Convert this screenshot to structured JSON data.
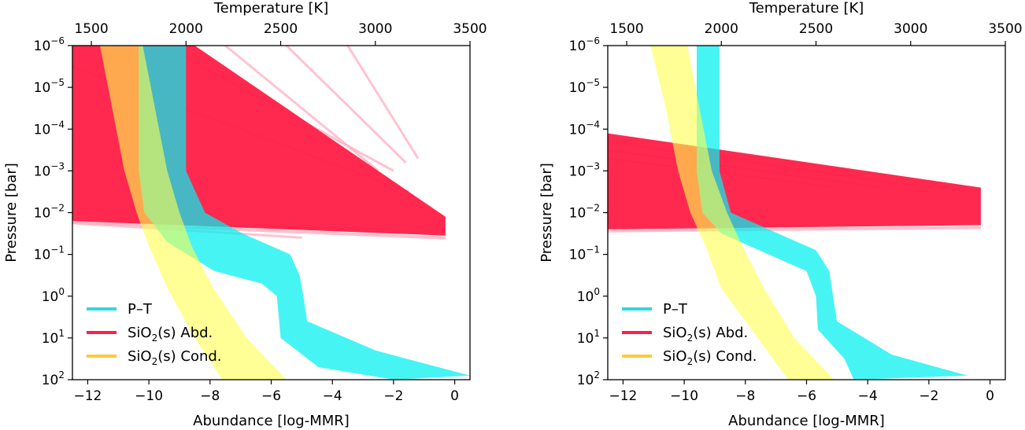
{
  "colors": {
    "pt": "#00f0f0",
    "abd": "#ff1e46",
    "abd_light": "#ffb0c0",
    "cond": "#ffff50",
    "legend_cond": "#ffc840",
    "legend_pt": "#30d8e0"
  },
  "chart_data": [
    {
      "type": "line",
      "panel": "left",
      "title": "",
      "xlabel": "Abundance [log-MMR]",
      "ylabel": "Pressure [bar]",
      "top_xlabel": "Temperature [K]",
      "xlim": [
        -12.5,
        0.5
      ],
      "ylim_log10": [
        2,
        -6
      ],
      "x_ticks": [
        -12,
        -10,
        -8,
        -6,
        -4,
        -2,
        0
      ],
      "x_tick_labels": [
        "−12",
        "−10",
        "−8",
        "−6",
        "−4",
        "−2",
        "0"
      ],
      "top_xlim": [
        1400,
        3500
      ],
      "top_ticks": [
        1500,
        2000,
        2500,
        3000,
        3500
      ],
      "top_tick_labels": [
        "1500",
        "2000",
        "2500",
        "3000",
        "3500"
      ],
      "y_ticks_log10": [
        -6,
        -5,
        -4,
        -3,
        -2,
        -1,
        0,
        1,
        2
      ],
      "y_tick_labels": [
        "−6",
        "−5",
        "−4",
        "−3",
        "−2",
        "−1",
        "0",
        "1",
        "2"
      ],
      "series": [
        {
          "name": "P–T",
          "axis": "temperature",
          "left": [
            [
              1750,
              -6
            ],
            [
              1750,
              -3
            ],
            [
              1780,
              -2
            ],
            [
              1900,
              -1.3
            ],
            [
              2150,
              -0.6
            ],
            [
              2400,
              -0.3
            ],
            [
              2480,
              0
            ],
            [
              2500,
              1
            ],
            [
              2700,
              1.7
            ],
            [
              3100,
              2
            ]
          ],
          "right": [
            [
              2000,
              -6
            ],
            [
              2000,
              -3
            ],
            [
              2100,
              -2
            ],
            [
              2300,
              -1.5
            ],
            [
              2550,
              -1
            ],
            [
              2600,
              -0.5
            ],
            [
              2620,
              0
            ],
            [
              2640,
              0.6
            ],
            [
              3000,
              1.3
            ],
            [
              3500,
              1.9
            ]
          ]
        },
        {
          "name": "SiO₂(s) Abd.",
          "axis": "abundance",
          "band": [
            [
              -12.5,
              -6
            ],
            [
              -8.5,
              -6
            ],
            [
              -0.3,
              -1.9
            ],
            [
              -0.3,
              -1.45
            ],
            [
              -12.5,
              -1.8
            ]
          ],
          "outliers": [
            [
              [
                -9.5,
                -6
              ],
              [
                -2.0,
                -3.0
              ]
            ],
            [
              [
                -7.5,
                -6
              ],
              [
                -2.5,
                -3.0
              ]
            ],
            [
              [
                -5.5,
                -6
              ],
              [
                -1.6,
                -3.2
              ]
            ],
            [
              [
                -3.5,
                -6
              ],
              [
                -1.2,
                -3.3
              ]
            ],
            [
              [
                -12.5,
                -5.5
              ],
              [
                -1.5,
                -2.5
              ]
            ],
            [
              [
                -12.5,
                -1.8
              ],
              [
                -2.0,
                -1.6
              ]
            ],
            [
              [
                -12.5,
                -1.75
              ],
              [
                -5.0,
                -1.4
              ]
            ]
          ]
        },
        {
          "name": "SiO₂(s) Cond.",
          "axis": "abundance",
          "left": [
            [
              -11.6,
              -6
            ],
            [
              -11.2,
              -4.5
            ],
            [
              -10.8,
              -3
            ],
            [
              -10.4,
              -2
            ],
            [
              -10.0,
              -1.2
            ],
            [
              -9.4,
              -0.2
            ],
            [
              -8.5,
              1
            ],
            [
              -7.6,
              2
            ]
          ],
          "right": [
            [
              -10.2,
              -6
            ],
            [
              -9.8,
              -4.5
            ],
            [
              -9.4,
              -3
            ],
            [
              -9.0,
              -2
            ],
            [
              -8.6,
              -1.2
            ],
            [
              -7.9,
              -0.2
            ],
            [
              -6.8,
              1
            ],
            [
              -5.5,
              2
            ]
          ]
        }
      ],
      "legend": [
        "P–T",
        "SiO₂(s) Abd.",
        "SiO₂(s) Cond."
      ],
      "legend_location": "lower-left"
    },
    {
      "type": "line",
      "panel": "right",
      "title": "",
      "xlabel": "Abundance [log-MMR]",
      "ylabel": "Pressure [bar]",
      "top_xlabel": "Temperature [K]",
      "xlim": [
        -12.5,
        0.5
      ],
      "ylim_log10": [
        2,
        -6
      ],
      "x_ticks": [
        -12,
        -10,
        -8,
        -6,
        -4,
        -2,
        0
      ],
      "x_tick_labels": [
        "−12",
        "−10",
        "−8",
        "−6",
        "−4",
        "−2",
        "0"
      ],
      "top_xlim": [
        1400,
        3500
      ],
      "top_ticks": [
        1500,
        2000,
        2500,
        3000,
        3500
      ],
      "top_tick_labels": [
        "1500",
        "2000",
        "2500",
        "3000",
        "3500"
      ],
      "y_ticks_log10": [
        -6,
        -5,
        -4,
        -3,
        -2,
        -1,
        0,
        1,
        2
      ],
      "y_tick_labels": [
        "−6",
        "−5",
        "−4",
        "−3",
        "−2",
        "−1",
        "0",
        "1",
        "2"
      ],
      "series": [
        {
          "name": "P–T",
          "axis": "temperature",
          "left": [
            [
              1870,
              -6
            ],
            [
              1870,
              -3
            ],
            [
              1900,
              -2
            ],
            [
              2000,
              -1.5
            ],
            [
              2250,
              -1.0
            ],
            [
              2450,
              -0.6
            ],
            [
              2500,
              0
            ],
            [
              2510,
              0.8
            ],
            [
              2650,
              1.5
            ],
            [
              2700,
              2
            ]
          ],
          "right": [
            [
              1990,
              -6
            ],
            [
              1990,
              -3
            ],
            [
              2050,
              -2
            ],
            [
              2250,
              -1.6
            ],
            [
              2500,
              -1.1
            ],
            [
              2570,
              -0.6
            ],
            [
              2590,
              0
            ],
            [
              2610,
              0.6
            ],
            [
              2900,
              1.4
            ],
            [
              3300,
              1.9
            ]
          ]
        },
        {
          "name": "SiO₂(s) Abd.",
          "axis": "abundance",
          "band": [
            [
              -12.5,
              -3.9
            ],
            [
              -0.3,
              -2.6
            ],
            [
              -0.3,
              -1.7
            ],
            [
              -12.5,
              -1.6
            ]
          ],
          "outliers": [
            [
              [
                -12.5,
                -3.5
              ],
              [
                -3.5,
                -2.6
              ]
            ],
            [
              [
                -12.5,
                -3.7
              ],
              [
                -3.0,
                -2.7
              ]
            ],
            [
              [
                -12.5,
                -3.3
              ],
              [
                -5.0,
                -2.6
              ]
            ]
          ]
        },
        {
          "name": "SiO₂(s) Cond.",
          "axis": "abundance",
          "left": [
            [
              -11.1,
              -6
            ],
            [
              -10.6,
              -4.5
            ],
            [
              -10.2,
              -3
            ],
            [
              -9.8,
              -2
            ],
            [
              -9.3,
              -1.2
            ],
            [
              -8.8,
              -0.2
            ],
            [
              -7.6,
              1
            ],
            [
              -6.6,
              2
            ]
          ],
          "right": [
            [
              -9.9,
              -6
            ],
            [
              -9.5,
              -4.5
            ],
            [
              -9.1,
              -3
            ],
            [
              -8.6,
              -2
            ],
            [
              -8.1,
              -1.2
            ],
            [
              -7.4,
              -0.2
            ],
            [
              -6.4,
              1
            ],
            [
              -5.1,
              2
            ]
          ]
        }
      ],
      "legend": [
        "P–T",
        "SiO₂(s) Abd.",
        "SiO₂(s) Cond."
      ],
      "legend_location": "lower-left"
    }
  ],
  "tick_base": "10",
  "legend_parts": {
    "pt": "P–T",
    "abd_prefix": "SiO",
    "abd_sub": "2",
    "abd_suffix": "(s) Abd.",
    "cond_prefix": "SiO",
    "cond_sub": "2",
    "cond_suffix": "(s) Cond."
  }
}
